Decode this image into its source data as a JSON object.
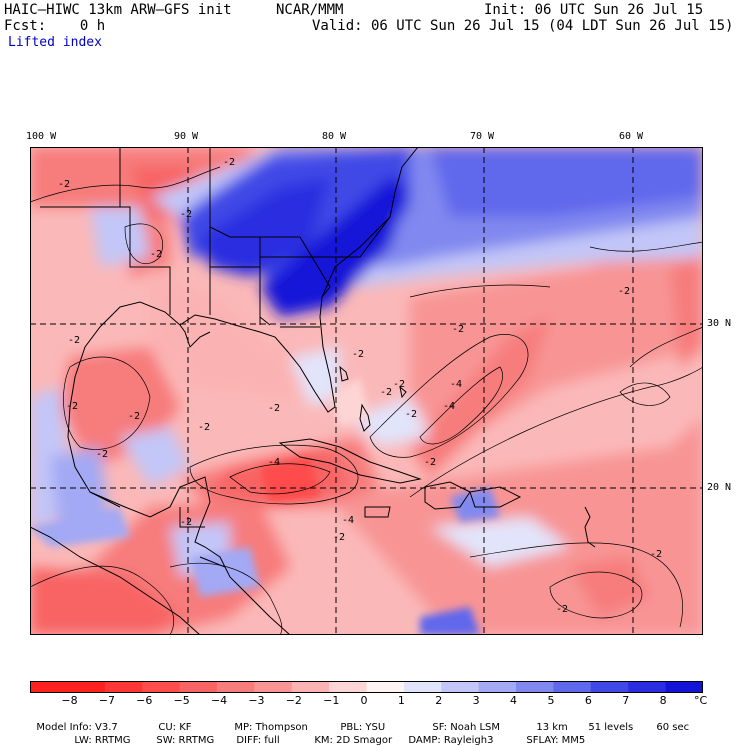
{
  "header": {
    "model": "HAIC–HIWC 13km ARW–GFS init",
    "org": "NCAR/MMM",
    "init": "Init: 06 UTC Sun 26 Jul 15",
    "fcst": "Fcst:    0 h",
    "valid": "Valid: 06 UTC Sun 26 Jul 15 (04 LDT Sun 26 Jul 15)",
    "field": "Lifted index"
  },
  "map": {
    "longitude_labels": [
      "100 W",
      "90 W",
      "80 W",
      "70 W",
      "60 W"
    ],
    "latitude_labels": [
      "30 N",
      "20 N"
    ],
    "contour_labels": [
      "-2",
      "-2",
      "-2",
      "-2",
      "-2",
      "-2",
      "-2",
      "-2",
      "-2",
      "-2",
      "-2",
      "-2",
      "-2",
      "-2",
      "-4",
      "-4",
      "-4",
      "-4",
      "-2",
      "-2",
      "-2",
      "-2",
      "-2",
      "-2",
      "-2"
    ],
    "colors": {
      "neg8": "#ff2020",
      "neg7": "#ff3636",
      "neg6": "#ff4c4c",
      "neg5": "#f86464",
      "neg4": "#f77c7c",
      "neg3": "#f89494",
      "neg2": "#fbb2b2",
      "neg1": "#fdd5d5",
      "zero": "#fff4f4",
      "pos1": "#e2e4fb",
      "pos2": "#c2c6f8",
      "pos3": "#a3a9f4",
      "pos4": "#8189f0",
      "pos5": "#6068ec",
      "pos6": "#4048e6",
      "pos7": "#2a2ee0",
      "pos8": "#1414d8"
    }
  },
  "colorbar": {
    "labels": [
      "−8",
      "−7",
      "−6",
      "−5",
      "−4",
      "−3",
      "−2",
      "−1",
      "0",
      "1",
      "2",
      "3",
      "4",
      "5",
      "6",
      "7",
      "8"
    ],
    "unit": "°C"
  },
  "footer": {
    "line1": [
      "Model Info: V3.7",
      "CU: KF",
      "MP: Thompson",
      "PBL: YSU",
      "SF: Noah LSM",
      "13 km",
      "51 levels",
      "60 sec"
    ],
    "line2": [
      "LW: RRTMG",
      "SW: RRTMG",
      "DIFF: full",
      "KM: 2D Smagor",
      "DAMP: Rayleigh3",
      "SFLAY: MM5"
    ]
  }
}
